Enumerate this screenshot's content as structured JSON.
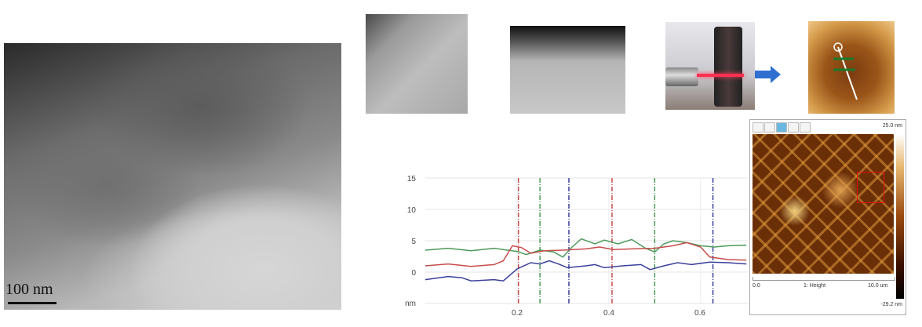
{
  "tem_image": {
    "scale_bar_label": "100 nm"
  },
  "afm_panel": {
    "max_label": "25.0 nm",
    "min_label": "-29.2 nm",
    "x_start": "0.0",
    "channel": "1: Height",
    "x_end": "10.0 um",
    "tool_icons": [
      "pencil-icon",
      "select-icon",
      "zoom-icon",
      "line-icon",
      "line-icon"
    ]
  },
  "arrow_color": "#2f6fd0",
  "chart_data": {
    "type": "line",
    "x_ticks": [
      "0.2",
      "0.4",
      "0.6"
    ],
    "y_ticks": [
      "15",
      "10",
      "5",
      "0"
    ],
    "y_unit_label": "nm",
    "xlim": [
      0,
      0.703
    ],
    "ylim": [
      -5,
      15
    ],
    "grid": true,
    "series": [
      {
        "color": "#4c9a5a",
        "x": [
          0,
          0.05,
          0.1,
          0.15,
          0.2,
          0.22,
          0.25,
          0.28,
          0.3,
          0.32,
          0.34,
          0.37,
          0.39,
          0.42,
          0.45,
          0.48,
          0.5,
          0.52,
          0.54,
          0.57,
          0.6,
          0.63,
          0.66,
          0.7
        ],
        "y": [
          3.5,
          3.8,
          3.4,
          3.8,
          3.3,
          2.8,
          3.5,
          3.2,
          2.4,
          4.0,
          5.3,
          4.5,
          5.1,
          4.5,
          5.2,
          3.8,
          3.2,
          4.5,
          5.0,
          4.7,
          4.2,
          4.0,
          4.2,
          4.3
        ]
      },
      {
        "color": "#c84c4c",
        "x": [
          0,
          0.05,
          0.1,
          0.15,
          0.17,
          0.19,
          0.21,
          0.23,
          0.26,
          0.3,
          0.35,
          0.38,
          0.41,
          0.45,
          0.5,
          0.54,
          0.57,
          0.6,
          0.62,
          0.66,
          0.7
        ],
        "y": [
          1.0,
          1.3,
          0.9,
          1.2,
          1.8,
          4.2,
          3.9,
          3.0,
          3.4,
          3.5,
          3.7,
          4.0,
          3.6,
          3.7,
          3.8,
          4.2,
          4.7,
          4.0,
          2.4,
          2.0,
          1.9
        ]
      },
      {
        "color": "#3a3f9a",
        "x": [
          0,
          0.05,
          0.08,
          0.1,
          0.15,
          0.17,
          0.2,
          0.23,
          0.25,
          0.27,
          0.29,
          0.31,
          0.35,
          0.37,
          0.39,
          0.43,
          0.47,
          0.49,
          0.52,
          0.55,
          0.58,
          0.62,
          0.66,
          0.7
        ],
        "y": [
          -1.2,
          -0.7,
          -0.9,
          -1.4,
          -1.2,
          -1.4,
          0.5,
          1.5,
          1.3,
          1.8,
          1.3,
          0.7,
          1.0,
          1.2,
          0.7,
          1.0,
          1.2,
          0.4,
          1.0,
          1.5,
          1.2,
          1.6,
          1.5,
          1.3
        ]
      }
    ],
    "markers": [
      {
        "x": 0.203,
        "color": "#c84c4c"
      },
      {
        "x": 0.25,
        "color": "#4c9a5a"
      },
      {
        "x": 0.313,
        "color": "#3a3f9a"
      },
      {
        "x": 0.407,
        "color": "#c84c4c"
      },
      {
        "x": 0.5,
        "color": "#4c9a5a"
      },
      {
        "x": 0.627,
        "color": "#3a3f9a"
      }
    ]
  }
}
